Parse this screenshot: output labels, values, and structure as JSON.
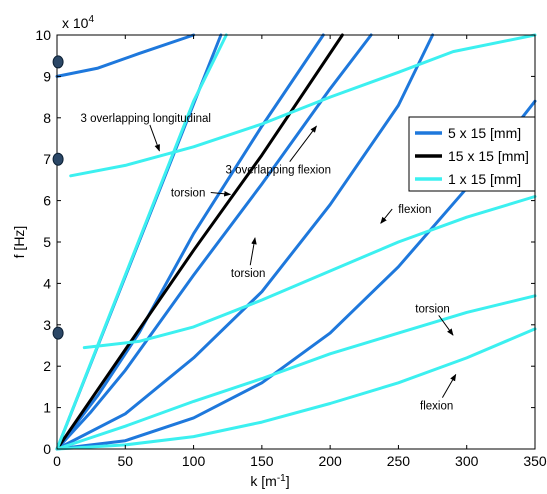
{
  "chart_data": {
    "type": "line",
    "title": "",
    "xlabel": "k [m",
    "xlabel_sup": "-1",
    "xlabel_end": "]",
    "ylabel": "f [Hz]",
    "y_multiplier": "x 10",
    "y_multiplier_exp": "4",
    "xlim": [
      0,
      350
    ],
    "ylim": [
      0,
      10
    ],
    "xticks": [
      "0",
      "50",
      "100",
      "150",
      "200",
      "250",
      "300",
      "350"
    ],
    "yticks": [
      "0",
      "1",
      "2",
      "3",
      "4",
      "5",
      "6",
      "7",
      "8",
      "9",
      "10"
    ],
    "legend_position": "right",
    "colors": {
      "blue": "#1e78dc",
      "black": "#000000",
      "cyan": "#3cf0f0",
      "marker": "#2b4766"
    },
    "series": [
      {
        "name": "5 x 15 [mm]",
        "color": "#1e78dc"
      },
      {
        "name": "15 x 15 [mm]",
        "color": "#000000"
      },
      {
        "name": "1 x 15 [mm]",
        "color": "#3cf0f0"
      }
    ],
    "curves": [
      {
        "group": "5 x 15 [mm]",
        "points": [
          [
            0,
            0
          ],
          [
            120,
            10
          ]
        ]
      },
      {
        "group": "5 x 15 [mm]",
        "points": [
          [
            0,
            9.0
          ],
          [
            30,
            9.2
          ],
          [
            60,
            9.55
          ],
          [
            100,
            10
          ]
        ]
      },
      {
        "group": "5 x 15 [mm]",
        "points": [
          [
            0,
            0
          ],
          [
            30,
            1.3
          ],
          [
            60,
            2.8
          ],
          [
            100,
            5.2
          ],
          [
            150,
            7.8
          ],
          [
            195,
            10
          ]
        ]
      },
      {
        "group": "5 x 15 [mm]",
        "points": [
          [
            0,
            0
          ],
          [
            25,
            0.9
          ],
          [
            50,
            1.9
          ],
          [
            100,
            4.2
          ],
          [
            150,
            6.4
          ],
          [
            200,
            8.7
          ],
          [
            230,
            10
          ]
        ]
      },
      {
        "group": "5 x 15 [mm]",
        "points": [
          [
            0,
            0
          ],
          [
            50,
            0.85
          ],
          [
            100,
            2.2
          ],
          [
            150,
            3.8
          ],
          [
            200,
            5.9
          ],
          [
            250,
            8.3
          ],
          [
            275,
            10
          ]
        ]
      },
      {
        "group": "5 x 15 [mm]",
        "points": [
          [
            0,
            0
          ],
          [
            50,
            0.2
          ],
          [
            100,
            0.75
          ],
          [
            150,
            1.6
          ],
          [
            200,
            2.8
          ],
          [
            250,
            4.4
          ],
          [
            300,
            6.3
          ],
          [
            350,
            8.4
          ]
        ]
      },
      {
        "group": "15 x 15 [mm]",
        "points": [
          [
            0,
            0
          ],
          [
            50,
            2.4
          ],
          [
            100,
            4.8
          ],
          [
            150,
            7.1
          ],
          [
            209,
            10
          ]
        ]
      },
      {
        "group": "1 x 15 [mm]",
        "points": [
          [
            0,
            0
          ],
          [
            50,
            4.2
          ],
          [
            100,
            8.4
          ],
          [
            124,
            10
          ]
        ]
      },
      {
        "group": "1 x 15 [mm]",
        "points": [
          [
            10,
            6.6
          ],
          [
            50,
            6.85
          ],
          [
            100,
            7.3
          ],
          [
            150,
            7.85
          ],
          [
            200,
            8.5
          ],
          [
            250,
            9.1
          ],
          [
            290,
            9.6
          ],
          [
            350,
            10
          ]
        ]
      },
      {
        "group": "1 x 15 [mm]",
        "points": [
          [
            20,
            2.45
          ],
          [
            60,
            2.6
          ],
          [
            100,
            2.95
          ],
          [
            150,
            3.6
          ],
          [
            200,
            4.3
          ],
          [
            250,
            5.0
          ],
          [
            300,
            5.6
          ],
          [
            350,
            6.1
          ]
        ]
      },
      {
        "group": "1 x 15 [mm]",
        "points": [
          [
            0,
            0
          ],
          [
            50,
            0.55
          ],
          [
            100,
            1.15
          ],
          [
            150,
            1.7
          ],
          [
            200,
            2.3
          ],
          [
            250,
            2.8
          ],
          [
            300,
            3.3
          ],
          [
            350,
            3.7
          ]
        ]
      },
      {
        "group": "1 x 15 [mm]",
        "points": [
          [
            0,
            0
          ],
          [
            50,
            0.1
          ],
          [
            100,
            0.3
          ],
          [
            150,
            0.65
          ],
          [
            200,
            1.1
          ],
          [
            250,
            1.6
          ],
          [
            300,
            2.2
          ],
          [
            350,
            2.9
          ]
        ]
      }
    ],
    "markers": [
      [
        0.8,
        9.35
      ],
      [
        0.8,
        7.0
      ],
      [
        0.8,
        2.8
      ]
    ],
    "annotations": [
      {
        "text": "3 overlapping longitudinal",
        "x": 65,
        "y": 7.9,
        "arrow_to": [
          75,
          7.2
        ]
      },
      {
        "text": "torsion",
        "x": 96,
        "y": 6.1,
        "arrow_to": [
          127,
          6.15
        ]
      },
      {
        "text": "3 overlapping flexion",
        "x": 162,
        "y": 6.65,
        "arrow_to": [
          190,
          7.8
        ]
      },
      {
        "text": "torsion",
        "x": 140,
        "y": 4.15,
        "arrow_to": [
          145,
          5.1
        ]
      },
      {
        "text": "flexion",
        "x": 262,
        "y": 5.7,
        "arrow_to": [
          237,
          5.45
        ]
      },
      {
        "text": "torsion",
        "x": 275,
        "y": 3.3,
        "arrow_to": [
          290,
          2.75
        ]
      },
      {
        "text": "flexion",
        "x": 278,
        "y": 0.95,
        "arrow_to": [
          292,
          1.8
        ]
      }
    ]
  }
}
